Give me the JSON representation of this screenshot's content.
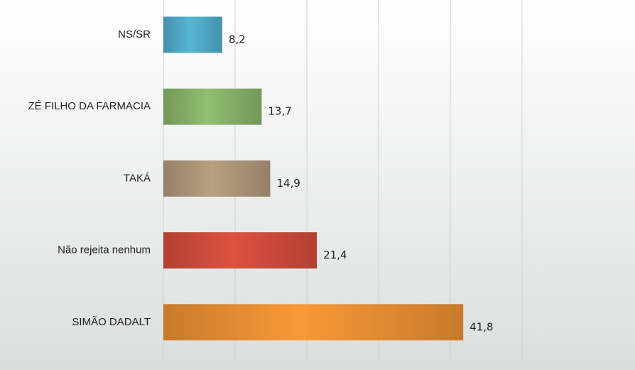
{
  "chart_data": {
    "type": "hbar",
    "categories": [
      "NS/SR",
      "ZÉ FILHO DA FARMACIA",
      "TAKÁ",
      "Não rejeita nenhum",
      "SIMÃO DADALT"
    ],
    "values": [
      8.2,
      13.7,
      14.9,
      21.4,
      41.8
    ],
    "value_labels": [
      "8,2",
      "13,7",
      "14,9",
      "21,4",
      "41,8"
    ],
    "colors": [
      "#4da6c2",
      "#84ad66",
      "#a99176",
      "#c94a3a",
      "#e28b32"
    ],
    "xlim": [
      0,
      50
    ],
    "xticks": [
      0,
      10,
      20,
      30,
      40,
      50
    ],
    "grid": true,
    "tick_labels": false
  }
}
